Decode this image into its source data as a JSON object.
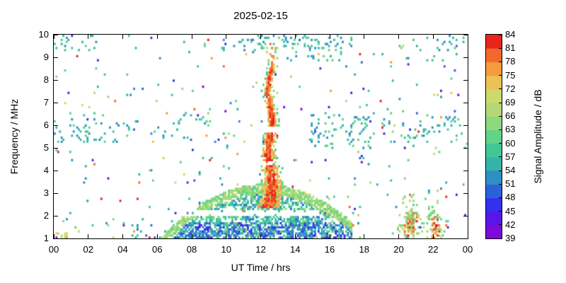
{
  "chart_data": {
    "type": "heatmap",
    "title": "2025-02-15",
    "xlabel": "UT Time / hrs",
    "ylabel": "Frequency / MHz",
    "cblabel": "Signal Amplitude / dB",
    "x_range": [
      0,
      24
    ],
    "x_tick_values": [
      0,
      2,
      4,
      6,
      8,
      10,
      12,
      14,
      16,
      18,
      20,
      22,
      24
    ],
    "x_tick_labels": [
      "00",
      "02",
      "04",
      "06",
      "08",
      "10",
      "12",
      "14",
      "16",
      "18",
      "20",
      "22",
      "00"
    ],
    "y_range": [
      1,
      10
    ],
    "y_tick_labels": [
      1,
      2,
      3,
      4,
      5,
      6,
      7,
      8,
      9,
      10
    ],
    "cb_range": [
      39,
      84
    ],
    "cb_tick_labels": [
      39,
      42,
      45,
      48,
      51,
      54,
      57,
      60,
      63,
      66,
      69,
      72,
      75,
      78,
      81,
      84
    ],
    "palette": [
      "#7a0bd8",
      "#5618e8",
      "#3231ef",
      "#2b62da",
      "#2e8fc3",
      "#35b3ab",
      "#41c795",
      "#62d387",
      "#8ed87d",
      "#b3d977",
      "#cdd96c",
      "#ecc156",
      "#f49a40",
      "#f2672c",
      "#e8251a"
    ],
    "render": {
      "nt": 240,
      "nf": 100,
      "seed": 20250215
    },
    "features": {
      "background": {
        "p": 0.014,
        "amp_weights": [
          [
            51,
            61,
            0.5
          ],
          [
            61,
            70,
            0.17
          ],
          [
            45,
            51,
            0.12
          ],
          [
            39,
            45,
            0.05
          ],
          [
            70,
            78,
            0.1
          ],
          [
            78,
            84,
            0.06
          ]
        ]
      },
      "clusters": [
        {
          "t0": 0.0,
          "t1": 4.5,
          "f0": 5.2,
          "f1": 6.3,
          "p": 0.08,
          "amp": [
            51,
            62
          ]
        },
        {
          "t0": 0.0,
          "t1": 2.5,
          "f0": 9.3,
          "f1": 10.0,
          "p": 0.09,
          "amp": [
            51,
            62
          ]
        },
        {
          "t0": 9.5,
          "t1": 13.5,
          "f0": 9.3,
          "f1": 10.0,
          "p": 0.1,
          "amp": [
            51,
            62
          ]
        },
        {
          "t0": 13.5,
          "t1": 17.3,
          "f0": 8.8,
          "f1": 10.0,
          "p": 0.12,
          "amp": [
            51,
            63
          ]
        },
        {
          "t0": 14.8,
          "t1": 18.6,
          "f0": 5.0,
          "f1": 6.6,
          "p": 0.11,
          "amp": [
            51,
            62
          ]
        },
        {
          "t0": 19.0,
          "t1": 23.8,
          "f0": 5.2,
          "f1": 6.4,
          "p": 0.07,
          "amp": [
            51,
            61
          ]
        },
        {
          "t0": 20.0,
          "t1": 23.8,
          "f0": 8.8,
          "f1": 10.0,
          "p": 0.06,
          "amp": [
            51,
            61
          ]
        },
        {
          "t0": 5.5,
          "t1": 9.0,
          "f0": 5.4,
          "f1": 6.6,
          "p": 0.05,
          "amp": [
            51,
            62
          ]
        },
        {
          "t0": 4.5,
          "t1": 6.2,
          "f0": 1.0,
          "f1": 1.6,
          "p": 0.1,
          "amp": [
            48,
            58
          ]
        },
        {
          "t0": 0.1,
          "t1": 0.8,
          "f0": 1.0,
          "f1": 1.3,
          "p": 0.3,
          "amp": [
            66,
            78
          ]
        }
      ],
      "dome": {
        "t0": 6.2,
        "t1": 17.3,
        "peak_t": 12.2,
        "half_width": 5.9,
        "max_add": 2.35,
        "shape_exp": 0.8,
        "edge_band": 0.4,
        "edge_p": 0.85,
        "edge_amp": [
          60,
          70
        ],
        "fill_p": 0.55,
        "fill_amp": [
          50,
          64
        ],
        "low_f": 1.7,
        "low_p": 0.3,
        "low_amp": [
          44,
          54
        ],
        "gap": {
          "t0": 7.2,
          "t1": 15.4,
          "f0": 2.02,
          "f1": 2.26
        }
      },
      "plume": {
        "t_center": 12.55,
        "wobble": 0.12,
        "f_base": 2.35,
        "f_top": 8.85,
        "f_spikes": 9.65,
        "spike_p": 0.3,
        "spike_width": 0.3,
        "width_points": [
          [
            2.4,
            1.3
          ],
          [
            3.0,
            1.15
          ],
          [
            4.0,
            0.85
          ],
          [
            5.0,
            0.6
          ],
          [
            6.0,
            0.5
          ],
          [
            7.0,
            0.42
          ],
          [
            8.0,
            0.34
          ],
          [
            8.85,
            0.28
          ]
        ],
        "p": 0.93,
        "core_frac": 0.55,
        "core_amp": [
          77,
          84
        ],
        "edge_amp": [
          70,
          78
        ],
        "fringe_extra": 0.15,
        "fringe_p": 0.25,
        "fringe_amp": [
          58,
          67
        ],
        "gaps": [
          {
            "f0": 5.72,
            "f1": 5.96,
            "p": 1.0
          },
          {
            "f0": 4.28,
            "f1": 4.46,
            "p": 0.65
          }
        ]
      },
      "blobs": [
        {
          "t": 20.7,
          "f": 1.65,
          "st": 0.5,
          "sf": 0.7,
          "p": 0.8,
          "core_amp": [
            74,
            84
          ],
          "halo_amp": [
            60,
            70
          ]
        },
        {
          "t": 22.05,
          "f": 1.55,
          "st": 0.45,
          "sf": 0.6,
          "p": 0.75,
          "core_amp": [
            74,
            84
          ],
          "halo_amp": [
            60,
            70
          ]
        }
      ]
    }
  }
}
